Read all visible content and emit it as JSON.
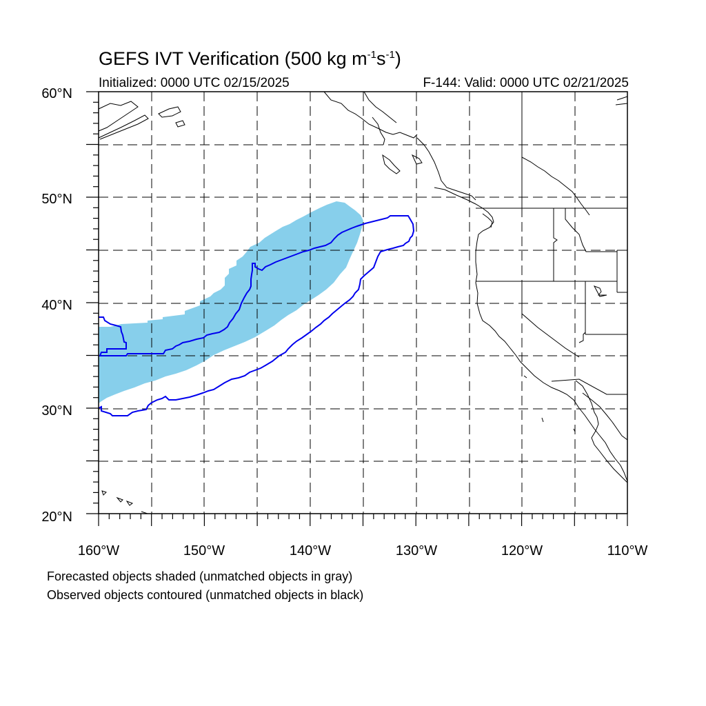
{
  "header": {
    "title_main": "GEFS IVT Verification (500 kg m",
    "title_sup1": "-1",
    "title_mid": "s",
    "title_sup2": "-1",
    "title_end": ")",
    "initialized": "Initialized: 0000 UTC 02/15/2025",
    "valid": "F-144: Valid: 0000 UTC 02/21/2025"
  },
  "map": {
    "lon_range": [
      -160,
      -110
    ],
    "lat_range": [
      20,
      60
    ],
    "lat_labels": [
      "20°N",
      "30°N",
      "40°N",
      "50°N",
      "60°N"
    ],
    "lon_labels": [
      "160°W",
      "150°W",
      "140°W",
      "130°W",
      "120°W",
      "110°W"
    ],
    "gridlines": "dashed every 5 degrees",
    "forecast_fill_color": "#87cfeb",
    "observed_contour_color": "#0000ee",
    "coastline_color": "#000000"
  },
  "captions": {
    "line1": "Forecasted objects shaded (unmatched objects in gray)",
    "line2": "Observed objects contoured (unmatched objects in black)"
  }
}
